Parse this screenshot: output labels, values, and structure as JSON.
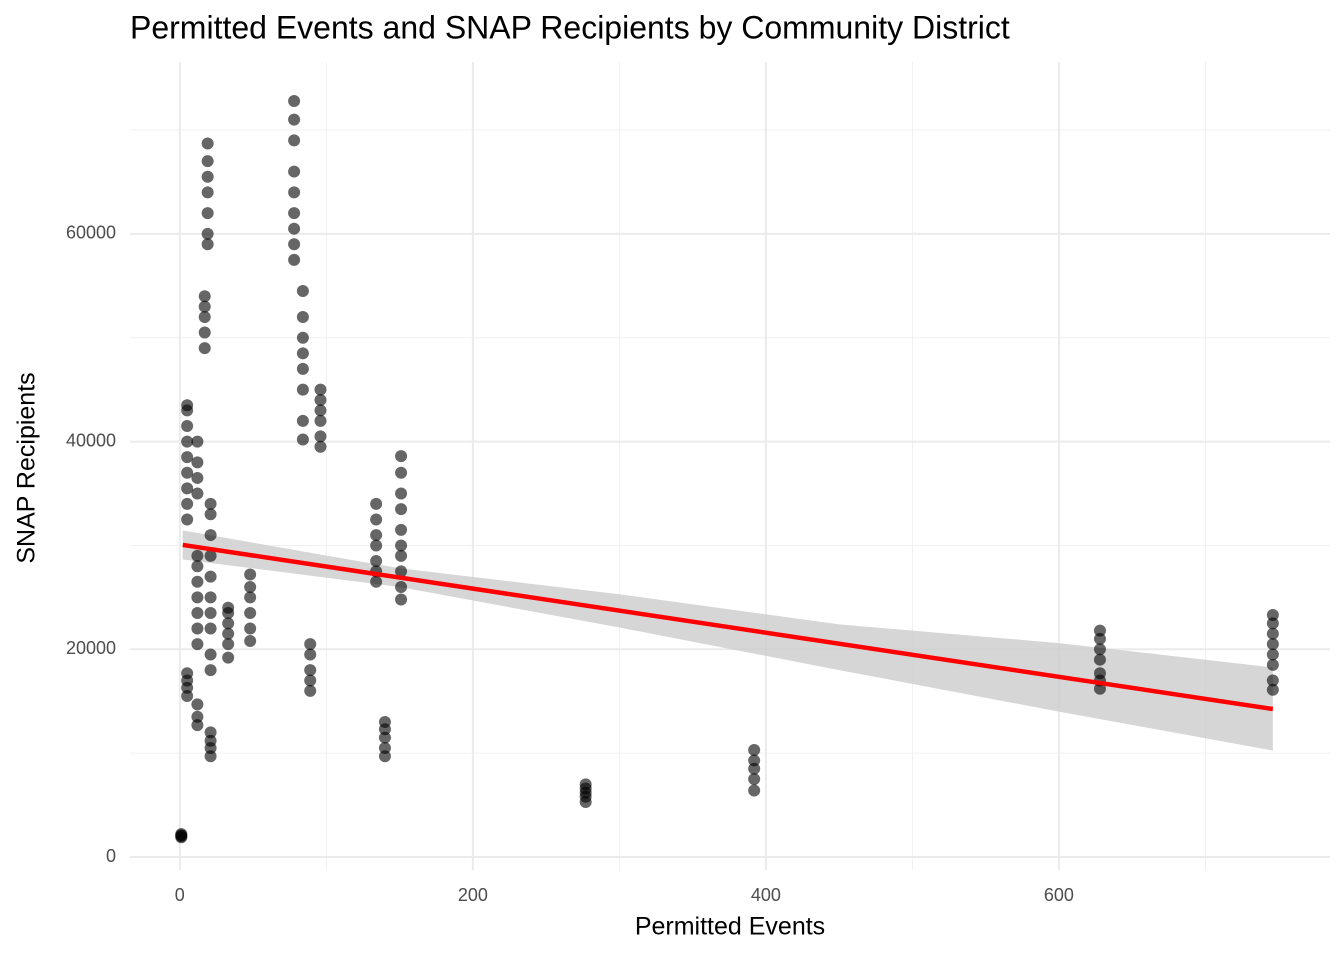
{
  "chart_data": {
    "type": "scatter",
    "title": "Permitted Events and SNAP Recipients by Community District",
    "x_label": "Permitted Events",
    "y_label": "SNAP Recipients",
    "xlim": [
      -34,
      785
    ],
    "ylim": [
      -1250,
      76550
    ],
    "xticks": [
      0,
      200,
      400,
      600
    ],
    "yticks": [
      0,
      20000,
      40000,
      60000
    ],
    "x_minor_grid": [
      100,
      300,
      500,
      700
    ],
    "y_minor_grid": [
      10000,
      30000,
      50000,
      70000
    ],
    "grid": true,
    "point_color": "#000000",
    "point_opacity": 0.6,
    "points": [
      {
        "x": 1,
        "y": [
          2000,
          2100,
          2200,
          1900
        ]
      },
      {
        "x": 5,
        "y": [
          32500,
          34000,
          35500,
          37000,
          38500,
          40000,
          41500,
          43000,
          43500,
          15500,
          16300,
          17000,
          17700
        ]
      },
      {
        "x": 12,
        "y": [
          35000,
          36500,
          38000,
          40000,
          20500,
          22000,
          23500,
          25000,
          26500,
          28000,
          29000,
          12700,
          13500,
          14700
        ]
      },
      {
        "x": 17,
        "y": [
          49000,
          50500,
          52000,
          53000,
          54000
        ]
      },
      {
        "x": 19,
        "y": [
          59000,
          60000,
          62000,
          64000,
          65500,
          67000,
          68700
        ]
      },
      {
        "x": 21,
        "y": [
          22000,
          23500,
          25000,
          27000,
          29000,
          31000,
          33000,
          34000,
          9700,
          10500,
          11200,
          12000,
          18000,
          19500
        ]
      },
      {
        "x": 33,
        "y": [
          19200,
          20500,
          21500,
          22500,
          23500,
          24000
        ]
      },
      {
        "x": 48,
        "y": [
          20800,
          22000,
          23500,
          25000,
          26000,
          27200
        ]
      },
      {
        "x": 78,
        "y": [
          57500,
          59000,
          60500,
          62000,
          64000,
          66000,
          69000,
          71000,
          72800
        ]
      },
      {
        "x": 84,
        "y": [
          40200,
          42000,
          45000,
          47000,
          48500,
          50000,
          52000,
          54500
        ]
      },
      {
        "x": 89,
        "y": [
          16000,
          17000,
          18000,
          19500,
          20500
        ]
      },
      {
        "x": 96,
        "y": [
          39500,
          40500,
          42000,
          43000,
          44000,
          45000
        ]
      },
      {
        "x": 134,
        "y": [
          26500,
          27500,
          28500,
          30000,
          31000,
          32500,
          34000
        ]
      },
      {
        "x": 140,
        "y": [
          9700,
          10500,
          11500,
          12300,
          13000
        ]
      },
      {
        "x": 151,
        "y": [
          24800,
          26000,
          27500,
          29000,
          30000,
          31500,
          33500,
          35000,
          37000,
          38600
        ]
      },
      {
        "x": 277,
        "y": [
          5300,
          5800,
          6200,
          6600,
          7000
        ]
      },
      {
        "x": 392,
        "y": [
          6400,
          7500,
          8500,
          9300,
          10300
        ]
      },
      {
        "x": 628,
        "y": [
          16200,
          17000,
          17700,
          19000,
          20000,
          21000,
          21800
        ]
      },
      {
        "x": 746,
        "y": [
          16100,
          17000,
          18500,
          19500,
          20500,
          21500,
          22500,
          23300
        ]
      }
    ],
    "band": {
      "color": "#cccccc",
      "x": [
        2,
        150,
        300,
        450,
        600,
        746
      ],
      "lower": [
        28650,
        26000,
        22100,
        18000,
        14000,
        10250
      ],
      "upper": [
        31450,
        27800,
        25300,
        22400,
        20600,
        18250
      ]
    },
    "fit": {
      "color": "#ff0000",
      "x": [
        2,
        746
      ],
      "y": [
        30050,
        14250
      ]
    }
  }
}
